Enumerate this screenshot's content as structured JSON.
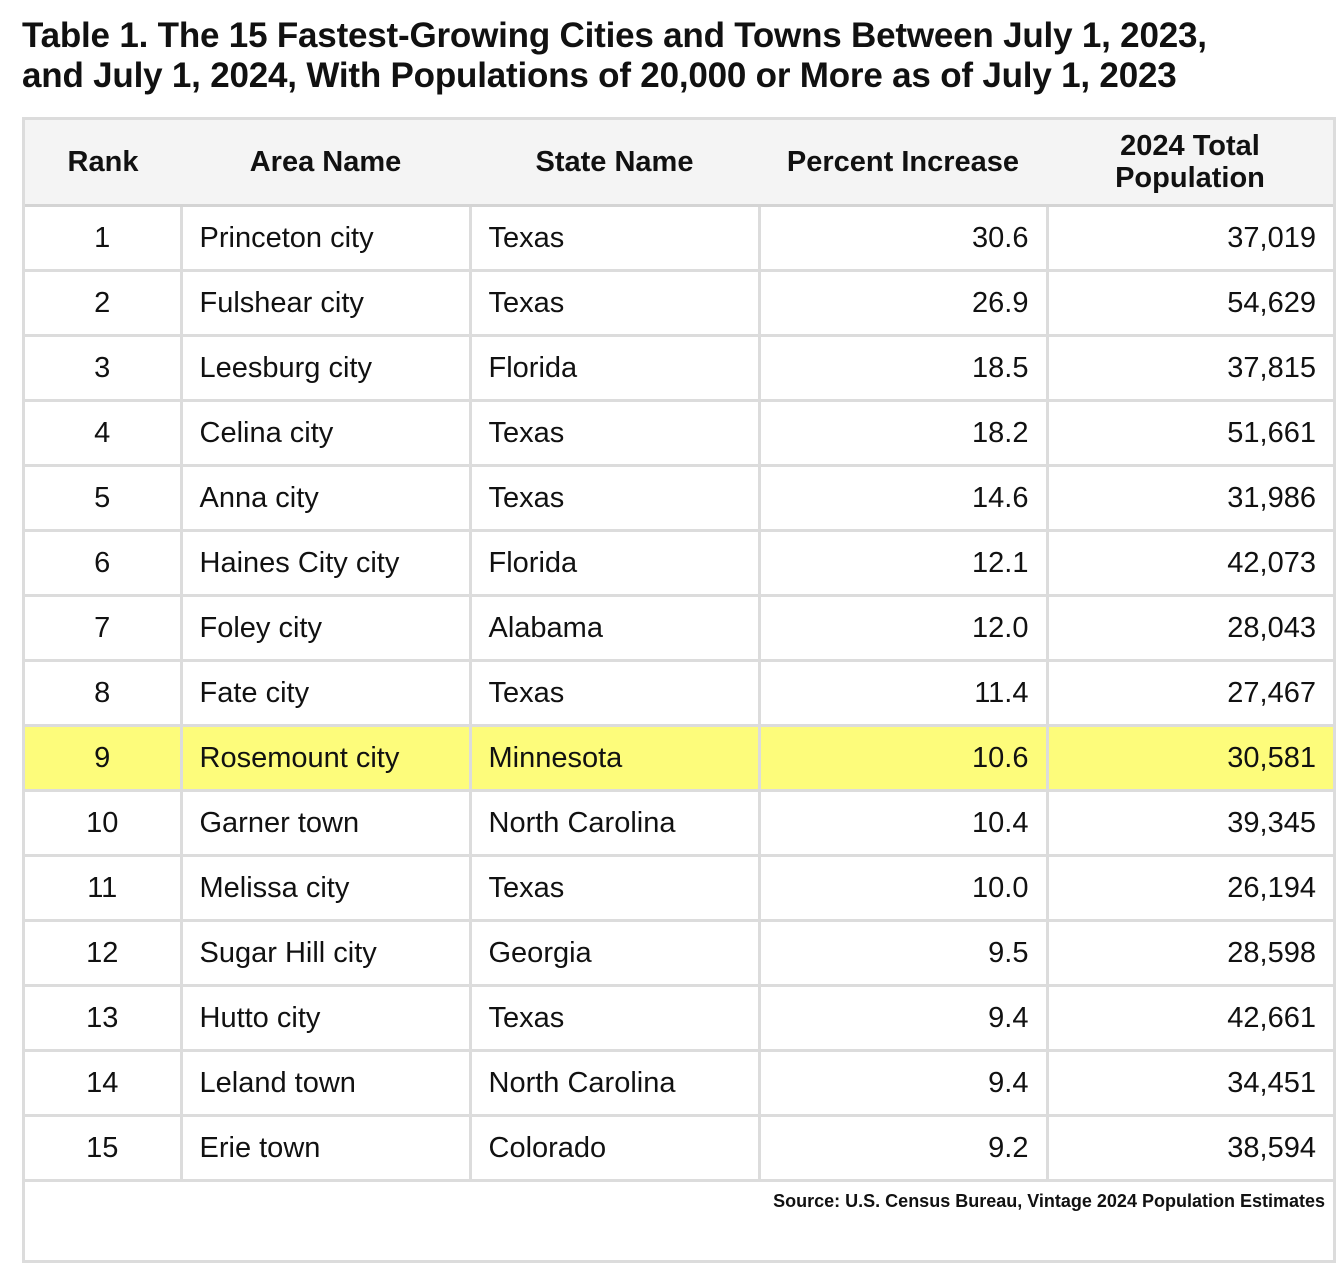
{
  "title": {
    "line1": "Table 1. The 15 Fastest-Growing Cities and Towns Between July 1, 2023,",
    "line2": "and July 1, 2024, With Populations of 20,000 or More as of July 1, 2023"
  },
  "table": {
    "headers": {
      "rank": "Rank",
      "area": "Area Name",
      "state": "State Name",
      "pct": "Percent Increase",
      "pop_line1": "2024 Total",
      "pop_line2": "Population"
    },
    "rows": [
      {
        "rank": "1",
        "area": "Princeton city",
        "state": "Texas",
        "pct": "30.6",
        "pop": "37,019"
      },
      {
        "rank": "2",
        "area": "Fulshear city",
        "state": "Texas",
        "pct": "26.9",
        "pop": "54,629"
      },
      {
        "rank": "3",
        "area": "Leesburg city",
        "state": "Florida",
        "pct": "18.5",
        "pop": "37,815"
      },
      {
        "rank": "4",
        "area": "Celina city",
        "state": "Texas",
        "pct": "18.2",
        "pop": "51,661"
      },
      {
        "rank": "5",
        "area": "Anna city",
        "state": "Texas",
        "pct": "14.6",
        "pop": "31,986"
      },
      {
        "rank": "6",
        "area": "Haines City city",
        "state": "Florida",
        "pct": "12.1",
        "pop": "42,073"
      },
      {
        "rank": "7",
        "area": "Foley city",
        "state": "Alabama",
        "pct": "12.0",
        "pop": "28,043"
      },
      {
        "rank": "8",
        "area": "Fate city",
        "state": "Texas",
        "pct": "11.4",
        "pop": "27,467"
      },
      {
        "rank": "9",
        "area": "Rosemount city",
        "state": "Minnesota",
        "pct": "10.6",
        "pop": "30,581"
      },
      {
        "rank": "10",
        "area": "Garner town",
        "state": "North Carolina",
        "pct": "10.4",
        "pop": "39,345"
      },
      {
        "rank": "11",
        "area": "Melissa city",
        "state": "Texas",
        "pct": "10.0",
        "pop": "26,194"
      },
      {
        "rank": "12",
        "area": "Sugar Hill city",
        "state": "Georgia",
        "pct": "9.5",
        "pop": "28,598"
      },
      {
        "rank": "13",
        "area": "Hutto city",
        "state": "Texas",
        "pct": "9.4",
        "pop": "42,661"
      },
      {
        "rank": "14",
        "area": "Leland town",
        "state": "North Carolina",
        "pct": "9.4",
        "pop": "34,451"
      },
      {
        "rank": "15",
        "area": "Erie town",
        "state": "Colorado",
        "pct": "9.2",
        "pop": "38,594"
      }
    ],
    "highlight_rank": "9",
    "highlight_color": "#fdfc7b",
    "source": "Source: U.S. Census Bureau, Vintage 2024 Population Estimates"
  }
}
